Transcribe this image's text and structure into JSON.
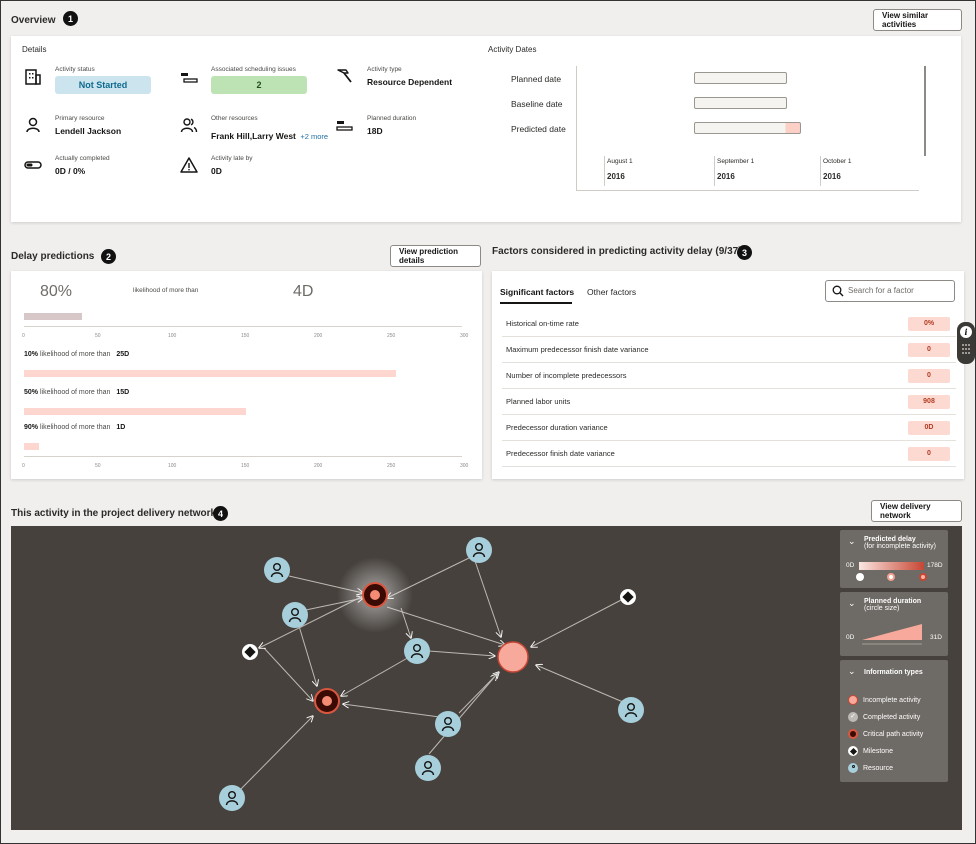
{
  "overview": {
    "title": "Overview",
    "badge": "1",
    "view_similar_label": "View similar activities",
    "details_heading": "Details",
    "dates_heading": "Activity Dates",
    "fields": {
      "activity_status_label": "Activity status",
      "activity_status_value": "Not Started",
      "scheduling_issues_label": "Associated scheduling issues",
      "scheduling_issues_value": "2",
      "activity_type_label": "Activity type",
      "activity_type_value": "Resource Dependent",
      "primary_resource_label": "Primary resource",
      "primary_resource_value": "Lendell Jackson",
      "other_resources_label": "Other resources",
      "other_resources_value": "Frank Hill,Larry West",
      "other_resources_more": "+2 more",
      "planned_duration_label": "Planned duration",
      "planned_duration_value": "18D",
      "actually_completed_label": "Actually completed",
      "actually_completed_value": "0D / 0%",
      "late_by_label": "Activity late by",
      "late_by_value": "0D"
    },
    "gantt": {
      "rows": [
        "Planned date",
        "Baseline date",
        "Predicted date"
      ],
      "months": [
        {
          "month": "August 1",
          "year": "2016"
        },
        {
          "month": "September 1",
          "year": "2016"
        },
        {
          "month": "October 1",
          "year": "2016"
        }
      ]
    }
  },
  "delay": {
    "title": "Delay predictions",
    "badge": "2",
    "view_details_label": "View prediction details",
    "headline_pct": "80%",
    "headline_text": "likelihood of more than",
    "headline_days": "4D",
    "axis_ticks": [
      "0",
      "50",
      "100",
      "150",
      "200",
      "250",
      "300"
    ],
    "rows": [
      {
        "pct": "10%",
        "text": "likelihood of more than",
        "days": "25D",
        "value": 255
      },
      {
        "pct": "50%",
        "text": "likelihood of more than",
        "days": "15D",
        "value": 152
      },
      {
        "pct": "90%",
        "text": "likelihood of more than",
        "days": "1D",
        "value": 10
      }
    ],
    "headline_value": 40
  },
  "factors": {
    "title": "Factors considered in predicting activity delay (9/37)",
    "badge": "3",
    "tabs": [
      "Significant factors",
      "Other factors"
    ],
    "search_placeholder": "Search for a factor",
    "rows": [
      {
        "name": "Historical on-time rate",
        "value": "0%"
      },
      {
        "name": "Maximum predecessor finish date variance",
        "value": "0"
      },
      {
        "name": "Number of incomplete predecessors",
        "value": "0"
      },
      {
        "name": "Planned labor units",
        "value": "908"
      },
      {
        "name": "Predecessor duration variance",
        "value": "0D"
      },
      {
        "name": "Predecessor finish date variance",
        "value": "0"
      }
    ]
  },
  "network": {
    "title": "This activity in the project delivery network",
    "badge": "4",
    "view_network_label": "View delivery network",
    "legend": {
      "predicted_delay_title": "Predicted delay",
      "predicted_delay_sub": "(for incomplete activity)",
      "predicted_delay_min": "0D",
      "predicted_delay_max": "178D",
      "planned_duration_title": "Planned duration",
      "planned_duration_sub": "(circle size)",
      "planned_duration_min": "0D",
      "planned_duration_max": "31D",
      "info_title": "Information types",
      "info_items": [
        "Incomplete activity",
        "Completed activity",
        "Critical path activity",
        "Milestone",
        "Resource"
      ]
    }
  },
  "colors": {
    "accent_red": "#c74634",
    "pill_blue": "#cce4ee",
    "pill_green": "#bde3b5",
    "network_bg": "#46413d",
    "resource_node": "#a7cfdb"
  }
}
